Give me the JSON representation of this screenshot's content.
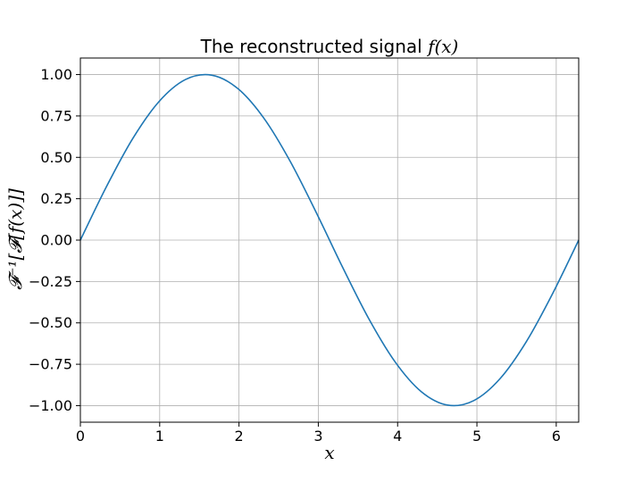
{
  "chart_data": {
    "type": "line",
    "title": "The reconstructed signal f(x)",
    "title_parts": {
      "text": "The reconstructed signal ",
      "math": "f(x)"
    },
    "xlabel": "x",
    "ylabel": "𝓕⁻¹[𝓕[f(x)]]",
    "xlim": [
      0,
      6.283185
    ],
    "ylim": [
      -1.1,
      1.1
    ],
    "x_ticks": [
      0,
      1,
      2,
      3,
      4,
      5,
      6
    ],
    "x_tick_labels": [
      "0",
      "1",
      "2",
      "3",
      "4",
      "5",
      "6"
    ],
    "y_ticks": [
      1.0,
      0.75,
      0.5,
      0.25,
      0.0,
      -0.25,
      -0.5,
      -0.75,
      -1.0
    ],
    "y_tick_labels": [
      "1.00",
      "0.75",
      "0.50",
      "0.25",
      "0.00",
      "−0.25",
      "−0.50",
      "−0.75",
      "−1.00"
    ],
    "grid": true,
    "series": [
      {
        "color": "#1f77b4",
        "x": [
          0,
          0.3307,
          0.6614,
          0.9921,
          1.3228,
          1.6535,
          1.9842,
          2.3149,
          2.6456,
          2.9762,
          3.3069,
          3.6376,
          3.9683,
          4.299,
          4.6297,
          4.9604,
          5.2911,
          5.6218,
          5.9525,
          6.2832
        ],
        "y": [
          0,
          0.3247,
          0.6142,
          0.8372,
          0.9694,
          0.9966,
          0.9158,
          0.7357,
          0.4759,
          0.1646,
          -0.1646,
          -0.4759,
          -0.7357,
          -0.9158,
          -0.9966,
          -0.9694,
          -0.8372,
          -0.6142,
          -0.3247,
          0
        ]
      }
    ]
  }
}
